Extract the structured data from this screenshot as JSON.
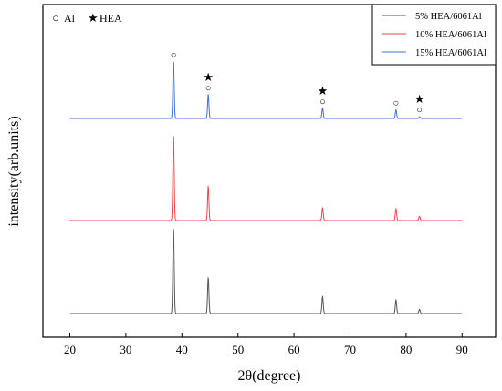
{
  "chart_data": {
    "type": "line",
    "title": "",
    "xlabel": "2θ(degree)",
    "ylabel": "intensity(arb.units)",
    "xlim": [
      15,
      95
    ],
    "xticks": [
      20,
      30,
      40,
      50,
      60,
      70,
      80,
      90
    ],
    "yticks_shown": false,
    "grid": false,
    "legend_position": "top-right",
    "series": [
      {
        "name": "5% HEA/6061Al",
        "color": "#555555",
        "baseline": 0,
        "peaks": [
          {
            "x": 38.5,
            "y": 1.0
          },
          {
            "x": 44.7,
            "y": 0.42
          },
          {
            "x": 65.1,
            "y": 0.2
          },
          {
            "x": 78.2,
            "y": 0.16
          },
          {
            "x": 82.4,
            "y": 0.05
          }
        ]
      },
      {
        "name": "10% HEA/6061Al",
        "color": "#e8474a",
        "baseline": 1.0,
        "peaks": [
          {
            "x": 38.5,
            "y": 1.0
          },
          {
            "x": 44.7,
            "y": 0.4
          },
          {
            "x": 65.1,
            "y": 0.15
          },
          {
            "x": 78.2,
            "y": 0.14
          },
          {
            "x": 82.4,
            "y": 0.05
          }
        ]
      },
      {
        "name": "15% HEA/6061Al",
        "color": "#3b72d8",
        "baseline": 2.0,
        "peaks": [
          {
            "x": 38.5,
            "y": 0.67
          },
          {
            "x": 44.7,
            "y": 0.28
          },
          {
            "x": 65.1,
            "y": 0.12
          },
          {
            "x": 78.2,
            "y": 0.1
          },
          {
            "x": 82.4,
            "y": 0.02
          }
        ]
      }
    ],
    "phase_key": [
      {
        "symbol": "○",
        "label": "Al"
      },
      {
        "symbol": "★",
        "label": "HEA"
      }
    ],
    "annotations": [
      {
        "x": 38.5,
        "symbols": [
          "○"
        ]
      },
      {
        "x": 44.7,
        "symbols": [
          "★",
          "○"
        ]
      },
      {
        "x": 65.1,
        "symbols": [
          "★",
          "○"
        ]
      },
      {
        "x": 78.2,
        "symbols": [
          "○"
        ]
      },
      {
        "x": 82.4,
        "symbols": [
          "★",
          "○"
        ]
      }
    ]
  }
}
